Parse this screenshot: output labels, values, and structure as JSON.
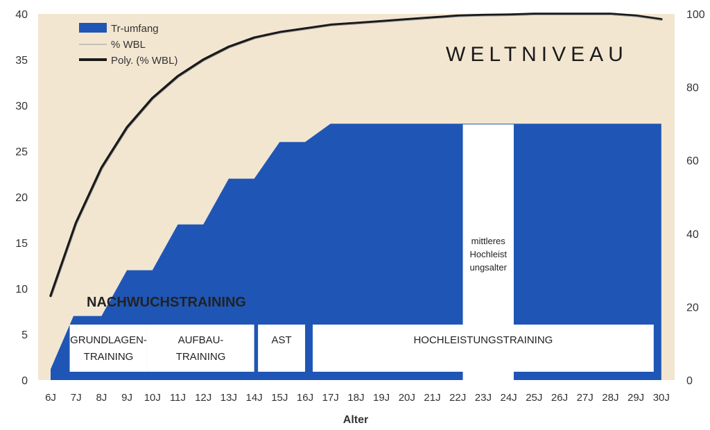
{
  "chart_data": {
    "type": "area",
    "xlabel": "Alter",
    "categories": [
      "6J",
      "7J",
      "8J",
      "9J",
      "10J",
      "11J",
      "12J",
      "13J",
      "14J",
      "15J",
      "16J",
      "17J",
      "18J",
      "19J",
      "20J",
      "21J",
      "22J",
      "23J",
      "24J",
      "25J",
      "26J",
      "27J",
      "28J",
      "29J",
      "30J"
    ],
    "y_left": {
      "ticks": [
        0,
        5,
        10,
        15,
        20,
        25,
        30,
        35,
        40
      ],
      "ylim": [
        0,
        40
      ]
    },
    "y_right": {
      "ticks": [
        0,
        20,
        40,
        60,
        80,
        100
      ],
      "ylim": [
        0,
        100
      ]
    },
    "series": [
      {
        "name": "Tr-umfang",
        "kind": "area-step",
        "axis": "left",
        "color": "#1f56b5",
        "points": [
          [
            6,
            1.2
          ],
          [
            6.9,
            7
          ],
          [
            8,
            7
          ],
          [
            9,
            12
          ],
          [
            10,
            12
          ],
          [
            11,
            17
          ],
          [
            12,
            17
          ],
          [
            13,
            22
          ],
          [
            14,
            22
          ],
          [
            15,
            26
          ],
          [
            16,
            26
          ],
          [
            17,
            28
          ],
          [
            30,
            28
          ]
        ]
      },
      {
        "name": "% WBL",
        "kind": "line-thin",
        "axis": "right",
        "color": "#999999",
        "values": [
          23,
          43,
          58,
          69,
          77,
          83,
          87.5,
          91,
          93.5,
          95,
          96,
          97,
          97.5,
          98,
          98.5,
          99,
          99.5,
          99.7,
          99.8,
          100,
          100,
          100,
          100,
          99.5,
          98.5
        ]
      },
      {
        "name": "Poly. (% WBL)",
        "kind": "line-thick",
        "axis": "right",
        "color": "#1a1a1a",
        "values": [
          23,
          43,
          58,
          69,
          77,
          83,
          87.5,
          91,
          93.5,
          95,
          96,
          97,
          97.5,
          98,
          98.5,
          99,
          99.5,
          99.7,
          99.8,
          100,
          100,
          100,
          100,
          99.5,
          98.5
        ]
      }
    ],
    "annotations": {
      "weltniveau": "WELTNIVEAU",
      "nachwuchs": "NACHWUCHSTRAINING",
      "mittleres": [
        "mittleres",
        "Hochleist",
        "ungsalter"
      ]
    },
    "phases": [
      {
        "key": "grundlagen",
        "lines": [
          "GRUNDLAGEN-",
          "TRAINING"
        ],
        "from": 6.75,
        "to": 9.8
      },
      {
        "key": "aufbau",
        "lines": [
          "AUFBAU-",
          "TRAINING"
        ],
        "from": 9.8,
        "to": 14
      },
      {
        "key": "ast",
        "lines": [
          "AST"
        ],
        "from": 14.15,
        "to": 16
      },
      {
        "key": "hochleistung",
        "lines": [
          "HOCHLEISTUNGSTRAINING"
        ],
        "from": 16.3,
        "to": 29.7
      }
    ],
    "gap": {
      "from": 22.2,
      "to": 24.2
    },
    "colors": {
      "background": "#f3e6d1",
      "area": "#1f56b5",
      "box": "#ffffff"
    },
    "legend_position": "top-left",
    "grid": false
  }
}
